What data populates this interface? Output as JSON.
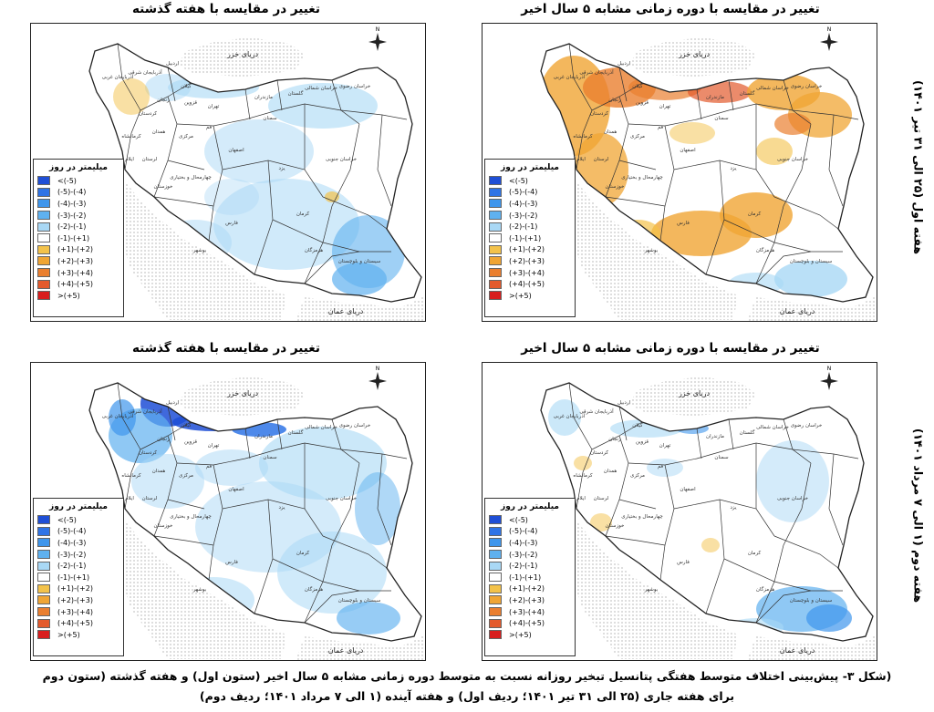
{
  "titles": {
    "p1": "تغییر در مقایسه با دوره زمانی مشابه ۵ سال اخیر",
    "p2": "تغییر در مقایسه با هفته گذشته",
    "p3": "تغییر در مقایسه با دوره زمانی مشابه ۵ سال اخیر",
    "p4": "تغییر در مقایسه با هفته گذشته"
  },
  "row_labels": {
    "row1": "هفته اول (۲۵ الی ۳۱ تیر ۱۴۰۱)",
    "row2": "هفته دوم (۱ الی ۷ مرداد ۱۴۰۱)"
  },
  "map_labels": {
    "caspian": "دریای خزر",
    "oman": "دریای عمان",
    "provinces": [
      "خراسان رضوی",
      "خراسان شمالی",
      "گلستان",
      "مازندران",
      "تهران",
      "سمنان",
      "اصفهان",
      "یزد",
      "کرمان",
      "فارس",
      "هرمزگان",
      "سیستان و بلوچستان",
      "خراسان جنوبی",
      "خوزستان",
      "بوشهر",
      "لرستان",
      "کرمانشاه",
      "همدان",
      "کردستان",
      "آذربایجان غربی",
      "آذربایجان شرقی",
      "اردبیل",
      "گیلان",
      "زنجان",
      "قزوین",
      "قم",
      "مرکزی",
      "ایلام",
      "چهارمحال و بختیاری"
    ]
  },
  "legend": {
    "title": "میلیمتر در روز",
    "items": [
      {
        "label": "<(-5)",
        "color": "#1f4fd6"
      },
      {
        "label": "(-5)-(-4)",
        "color": "#2f74e6"
      },
      {
        "label": "(-4)-(-3)",
        "color": "#3f96ec"
      },
      {
        "label": "(-3)-(-2)",
        "color": "#5fb1ef"
      },
      {
        "label": "(-2)-(-1)",
        "color": "#a9d8f5"
      },
      {
        "label": "(-1)-(+1)",
        "color": "#ffffff"
      },
      {
        "label": "(+1)-(+2)",
        "color": "#f3c24a"
      },
      {
        "label": "(+2)-(+3)",
        "color": "#f0a534"
      },
      {
        "label": "(+3)-(+4)",
        "color": "#ea7f2f"
      },
      {
        "label": "(+4)-(+5)",
        "color": "#e35a2c"
      },
      {
        "label": ">(+5)",
        "color": "#d81e1e"
      }
    ]
  },
  "caption": {
    "line1": "(شکل ۳- پیش‌بینی اختلاف متوسط هفتگی پتانسیل تبخیر روزانه نسبت به متوسط دوره زمانی مشابه ۵ سال اخیر (ستون اول) و هفته گذشته (ستون دوم",
    "line2": "برای هفته جاری (۲۵ الی ۳۱ تیر ۱۴۰۱؛ ردیف اول) و هفته آینده (۱ الی ۷ مرداد ۱۴۰۱؛ ردیف دوم)"
  },
  "colors": {
    "sea_dot": "#8a8a8a",
    "border": "#222222"
  }
}
